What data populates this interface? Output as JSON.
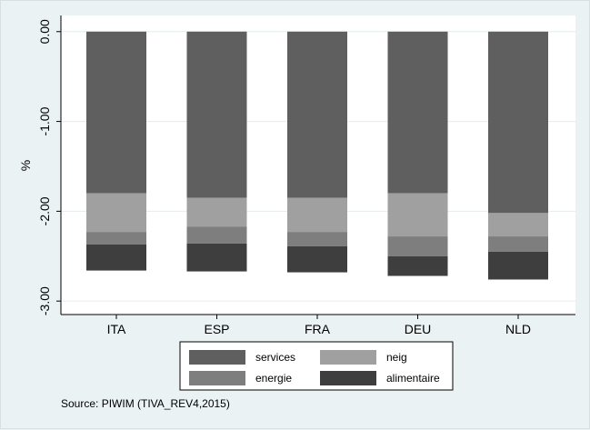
{
  "chart_data": {
    "type": "bar",
    "stacked": true,
    "direction": "down",
    "categories": [
      "ITA",
      "ESP",
      "FRA",
      "DEU",
      "NLD"
    ],
    "ylabel": "%",
    "ylim": [
      -3.15,
      0.18
    ],
    "yticks": [
      0,
      -1,
      -2,
      -3
    ],
    "ytick_labels": [
      "0.00",
      "-1.00",
      "-2.00",
      "-3.00"
    ],
    "grid": true,
    "legend_position": "bottom",
    "series": [
      {
        "name": "services",
        "color": "#5f5f5f",
        "values": [
          -1.8,
          -1.85,
          -1.85,
          -1.8,
          -2.02
        ]
      },
      {
        "name": "neig",
        "color": "#a0a0a0",
        "values": [
          -0.43,
          -0.32,
          -0.38,
          -0.48,
          -0.26
        ]
      },
      {
        "name": "energie",
        "color": "#7e7e7e",
        "values": [
          -0.14,
          -0.19,
          -0.16,
          -0.22,
          -0.17
        ]
      },
      {
        "name": "alimentaire",
        "color": "#3e3e3e",
        "values": [
          -0.29,
          -0.31,
          -0.29,
          -0.22,
          -0.31
        ]
      }
    ]
  },
  "legend": {
    "items": [
      {
        "name": "services",
        "label": "services"
      },
      {
        "name": "neig",
        "label": "neig"
      },
      {
        "name": "energie",
        "label": "energie"
      },
      {
        "name": "alimentaire",
        "label": "alimentaire"
      }
    ]
  },
  "source": "Source: PIWIM (TIVA_REV4,2015)"
}
